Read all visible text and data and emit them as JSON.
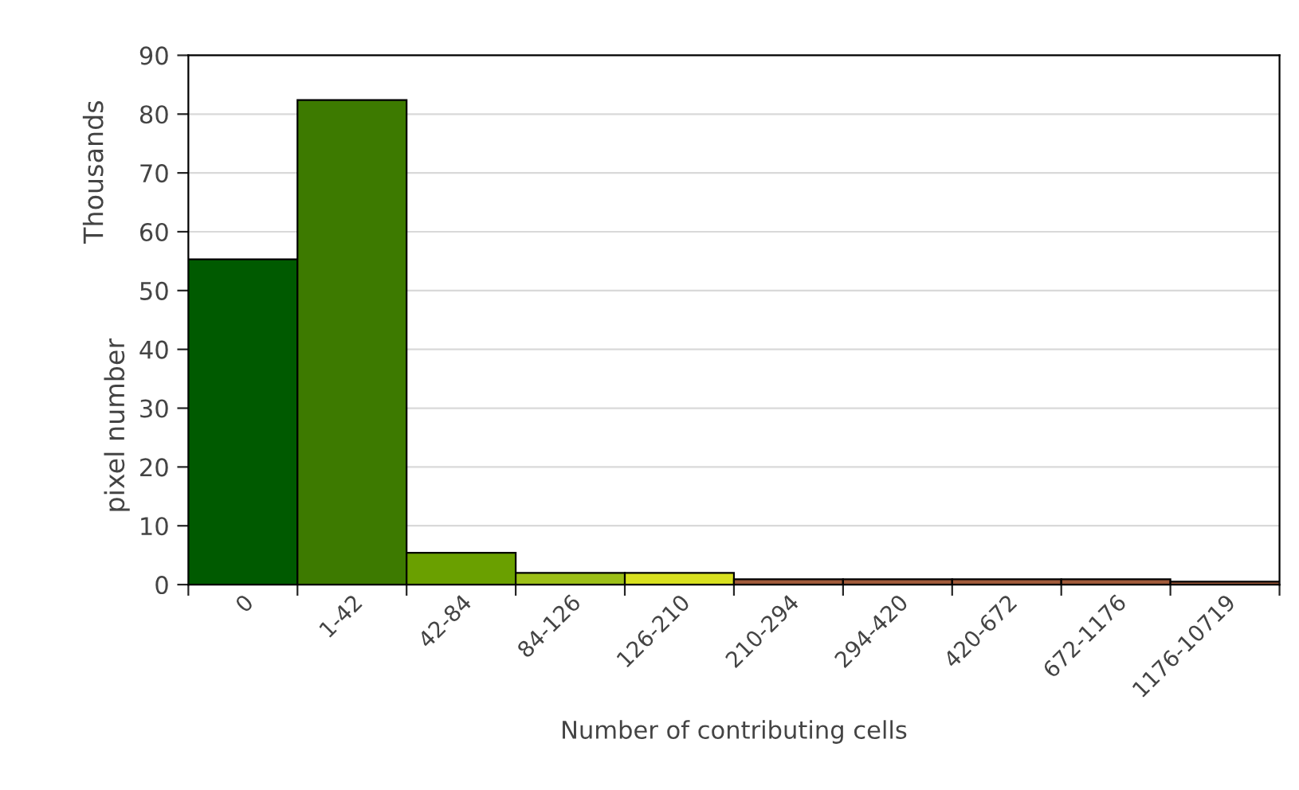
{
  "chart_data": {
    "type": "bar",
    "categories": [
      "0",
      "1-42",
      "42-84",
      "84-126",
      "126-210",
      "210-294",
      "294-420",
      "420-672",
      "672-1176",
      "1176-10719"
    ],
    "values": [
      55.3,
      82.4,
      5.4,
      2.0,
      2.0,
      0.9,
      0.9,
      0.9,
      0.9,
      0.5
    ],
    "colors": [
      "#005a00",
      "#3d7a00",
      "#6aa000",
      "#9cbf18",
      "#d8e020",
      "#a05a3a",
      "#a05a3a",
      "#a05a3a",
      "#a05a3a",
      "#a05a3a"
    ],
    "xlabel": "Number of contributing cells",
    "ylabel": "pixel number",
    "annotations": [
      "Thousands"
    ],
    "ylim": [
      0,
      90
    ],
    "yticks": [
      0,
      10,
      20,
      30,
      40,
      50,
      60,
      70,
      80,
      90
    ],
    "grid": "y"
  }
}
